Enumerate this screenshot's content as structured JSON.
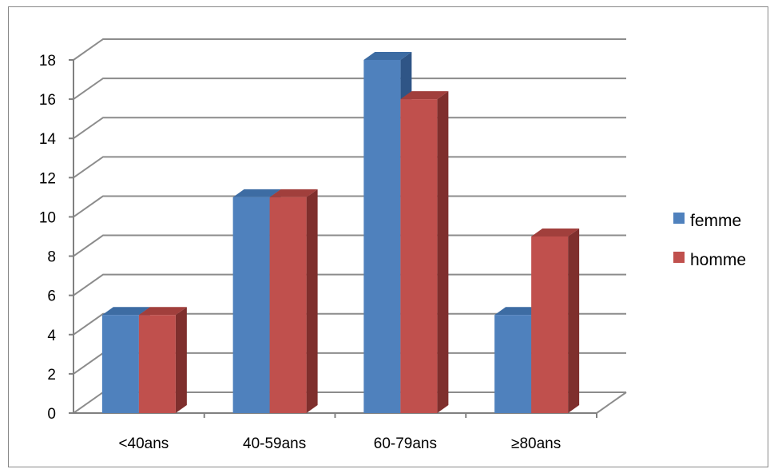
{
  "chart_data": {
    "type": "bar",
    "categories": [
      "<40ans",
      "40-59ans",
      "60-79ans",
      "≥80ans"
    ],
    "series": [
      {
        "name": "femme",
        "values": [
          5,
          11,
          18,
          5
        ]
      },
      {
        "name": "homme",
        "values": [
          5,
          11,
          16,
          9
        ]
      }
    ],
    "ylim": [
      0,
      18
    ],
    "yticks": [
      0,
      2,
      4,
      6,
      8,
      10,
      12,
      14,
      16,
      18
    ],
    "grid": true,
    "legend_position": "right",
    "style_3d": true,
    "colors": {
      "femme": {
        "front": "#4F81BD",
        "top": "#3D6CA3",
        "side": "#2F5586"
      },
      "homme": {
        "front": "#C0504D",
        "top": "#A13F3C",
        "side": "#7F2F2D"
      },
      "grid": "#8C8C8C",
      "axis": "#808080"
    }
  }
}
